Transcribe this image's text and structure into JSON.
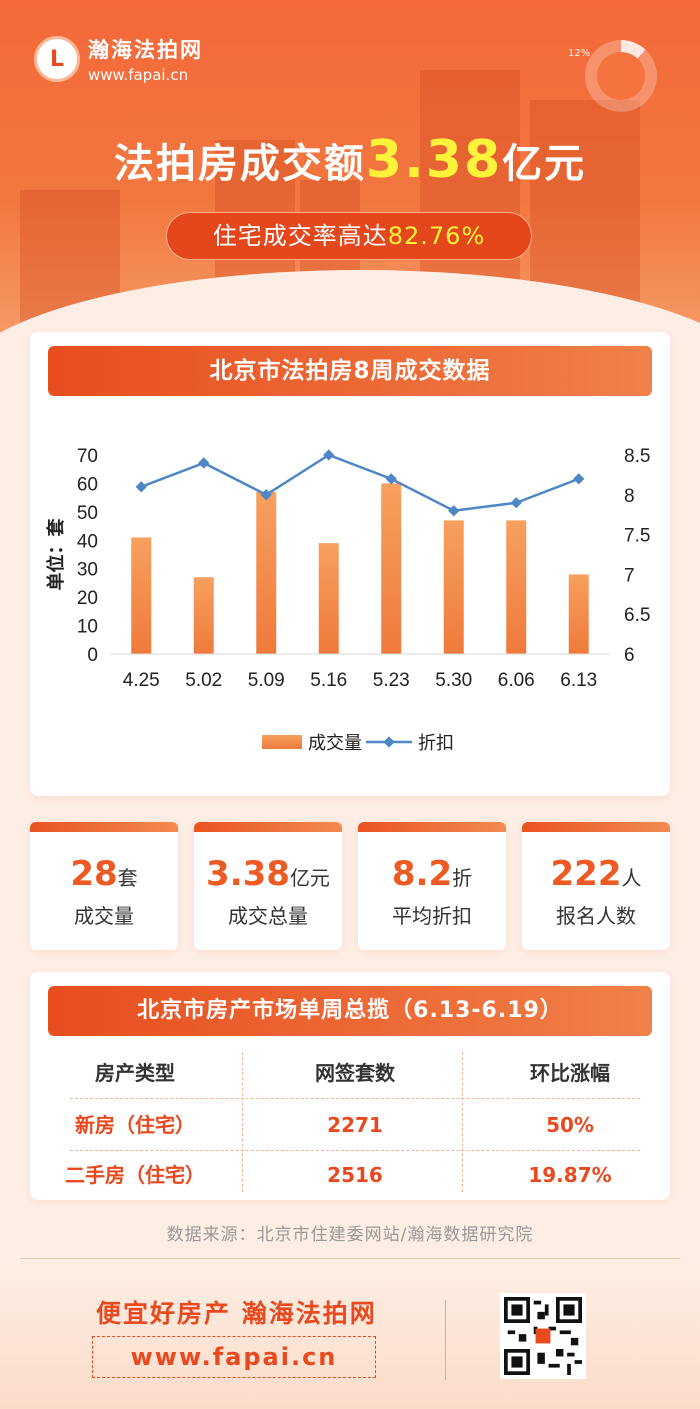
{
  "brand": {
    "logo_glyph": "L",
    "name": "瀚海法拍网",
    "url": "www.fapai.cn"
  },
  "hero": {
    "donut_percent": "12%",
    "donut_fraction": 0.12,
    "headline_prefix": "法拍房成交额",
    "headline_value": "3.38",
    "headline_suffix": "亿元",
    "pill_prefix": "住宅成交率高达",
    "pill_value": "82.76%"
  },
  "chart_card": {
    "title": "北京市法拍房8周成交数据"
  },
  "chart_data": {
    "type": "bar",
    "categories": [
      "4.25",
      "5.02",
      "5.09",
      "5.16",
      "5.23",
      "5.30",
      "6.06",
      "6.13"
    ],
    "series": [
      {
        "name": "成交量",
        "type": "bar",
        "axis": "left",
        "color": "#f28a4a",
        "values": [
          41,
          27,
          57,
          39,
          60,
          47,
          47,
          28
        ]
      },
      {
        "name": "折扣",
        "type": "line",
        "axis": "right",
        "color": "#4e87c4",
        "values": [
          8.1,
          8.4,
          8.0,
          8.5,
          8.2,
          7.8,
          7.9,
          8.2
        ]
      }
    ],
    "ylabel": "单位：套",
    "ylim": [
      0,
      70
    ],
    "yticks": [
      "0",
      "10",
      "20",
      "30",
      "40",
      "50",
      "60",
      "70"
    ],
    "y2lim": [
      6,
      8.5
    ],
    "y2ticks": [
      "6",
      "6.5",
      "7",
      "7.5",
      "8",
      "8.5"
    ],
    "legend_placement": "bottom",
    "grid": false
  },
  "stats": [
    {
      "value": "28",
      "unit": "套",
      "label": "成交量"
    },
    {
      "value": "3.38",
      "unit": "亿元",
      "label": "成交总量"
    },
    {
      "value": "8.2",
      "unit": "折",
      "label": "平均折扣"
    },
    {
      "value": "222",
      "unit": "人",
      "label": "报名人数"
    }
  ],
  "market": {
    "title": "北京市房产市场单周总揽（6.13-6.19）",
    "headers": [
      "房产类型",
      "网签套数",
      "环比涨幅"
    ],
    "rows": [
      [
        "新房（住宅）",
        "2271",
        "50%"
      ],
      [
        "二手房（住宅）",
        "2516",
        "19.87%"
      ]
    ]
  },
  "source_text": "数据来源：北京市住建委网站/瀚海数据研究院",
  "footer": {
    "slogan": "便宜好房产 瀚海法拍网",
    "url": "www.fapai.cn"
  }
}
